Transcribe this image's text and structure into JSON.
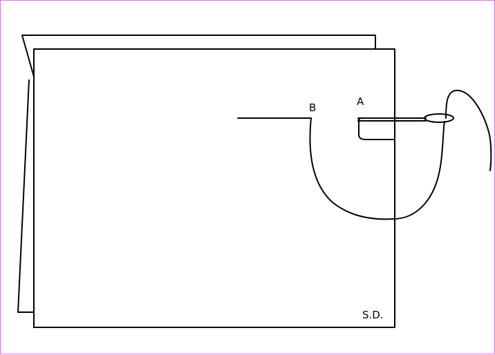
{
  "diagram": {
    "labels": {
      "point_b": "B",
      "point_a": "A",
      "signature": "S.D."
    },
    "colors": {
      "frame_border": "#e070e0",
      "stroke": "#000000",
      "background": "#ffffff"
    }
  }
}
